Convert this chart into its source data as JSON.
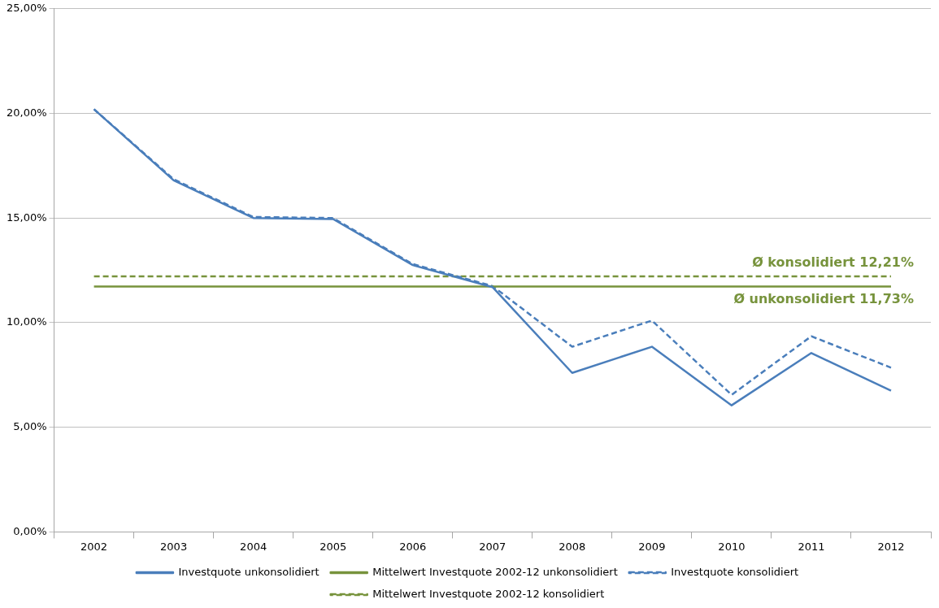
{
  "chart_data": {
    "type": "line",
    "categories": [
      "2002",
      "2003",
      "2004",
      "2005",
      "2006",
      "2007",
      "2008",
      "2009",
      "2010",
      "2011",
      "2012"
    ],
    "series": [
      {
        "name": "Investquote unkonsolidiert",
        "color": "#4a7ebb",
        "line_style": "solid",
        "values": [
          20.2,
          16.8,
          15.0,
          14.95,
          12.75,
          11.7,
          7.6,
          8.85,
          6.05,
          8.55,
          6.75
        ]
      },
      {
        "name": "Mittelwert Investquote 2002-12 unkonsolidiert",
        "color": "#77933c",
        "line_style": "solid",
        "values": [
          11.73,
          11.73,
          11.73,
          11.73,
          11.73,
          11.73,
          11.73,
          11.73,
          11.73,
          11.73,
          11.73
        ]
      },
      {
        "name": "Investquote konsolidiert",
        "color": "#4a7ebb",
        "line_style": "dashed",
        "values": [
          20.2,
          16.85,
          15.05,
          15.0,
          12.8,
          11.75,
          8.85,
          10.1,
          6.55,
          9.35,
          7.85
        ]
      },
      {
        "name": "Mittelwert Investquote 2002-12 konsolidiert",
        "color": "#77933c",
        "line_style": "dashed",
        "values": [
          12.21,
          12.21,
          12.21,
          12.21,
          12.21,
          12.21,
          12.21,
          12.21,
          12.21,
          12.21,
          12.21
        ]
      }
    ],
    "ylim": [
      0,
      25
    ],
    "yticks": [
      {
        "value": 0,
        "label": "0,00%"
      },
      {
        "value": 5,
        "label": "5,00%"
      },
      {
        "value": 10,
        "label": "10,00%"
      },
      {
        "value": 15,
        "label": "15,00%"
      },
      {
        "value": 20,
        "label": "20,00%"
      },
      {
        "value": 25,
        "label": "25,00%"
      }
    ],
    "grid": "y",
    "legend": "bottom",
    "marker": "none",
    "annotations": [
      {
        "text": "Ø konsolidiert 12,21%",
        "x": "2012",
        "y": 12.21
      },
      {
        "text": "Ø unkonsolidiert 11,73%",
        "x": "2012",
        "y": 11.73
      }
    ]
  }
}
